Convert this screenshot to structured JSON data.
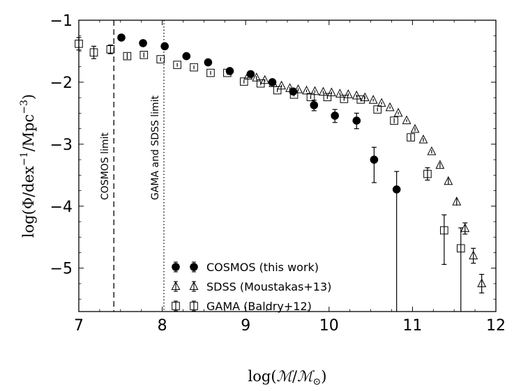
{
  "chart_data": {
    "type": "scatter",
    "xlabel_parts": {
      "prefix": "log(",
      "m1": "ℳ",
      "slash": "/",
      "m2": "ℳ",
      "sub": "⊙",
      "suffix": ")"
    },
    "ylabel_parts": {
      "prefix": "log(Φ/dex",
      "sup1": "−1",
      "mid": "/Mpc",
      "sup2": "−3",
      "suffix": ")"
    },
    "xlim": [
      7,
      12
    ],
    "ylim": [
      -5.7,
      -1.0
    ],
    "xticks": [
      7,
      8,
      9,
      10,
      11,
      12
    ],
    "yticks": [
      -1,
      -2,
      -3,
      -4,
      -5
    ],
    "xtick_labels": [
      "7",
      "8",
      "9",
      "10",
      "11",
      "12"
    ],
    "ytick_labels": [
      "−1",
      "−2",
      "−3",
      "−4",
      "−5"
    ],
    "vlines": [
      {
        "x": 7.42,
        "style": "dashed",
        "label": "COSMOS limit"
      },
      {
        "x": 8.02,
        "style": "dotted",
        "label": "GAMA and SDSS limit"
      }
    ],
    "legend_position": "lower-center",
    "series": [
      {
        "name": "COSMOS (this work)",
        "marker": "filled-circle",
        "x": [
          7.51,
          7.77,
          8.03,
          8.29,
          8.55,
          8.81,
          9.06,
          9.32,
          9.57,
          9.82,
          10.07,
          10.33,
          10.54,
          10.81
        ],
        "y": [
          -1.28,
          -1.37,
          -1.42,
          -1.58,
          -1.68,
          -1.82,
          -1.87,
          -2.0,
          -2.15,
          -2.37,
          -2.54,
          -2.62,
          -3.25,
          -3.73
        ],
        "err_low": [
          0.03,
          0.03,
          0.03,
          0.03,
          0.03,
          0.04,
          0.05,
          0.05,
          0.06,
          0.09,
          0.11,
          0.13,
          0.37,
          2.1
        ],
        "err_high": [
          0.03,
          0.03,
          0.03,
          0.03,
          0.03,
          0.04,
          0.05,
          0.05,
          0.06,
          0.08,
          0.1,
          0.12,
          0.2,
          0.29
        ]
      },
      {
        "name": "SDSS (Moustakas+13)",
        "marker": "open-triangle",
        "x": [
          9.03,
          9.13,
          9.23,
          9.33,
          9.43,
          9.53,
          9.63,
          9.73,
          9.83,
          9.93,
          10.03,
          10.13,
          10.23,
          10.33,
          10.43,
          10.53,
          10.63,
          10.73,
          10.83,
          10.93,
          11.03,
          11.13,
          11.23,
          11.33,
          11.43,
          11.53,
          11.63,
          11.73,
          11.83
        ],
        "y": [
          -1.9,
          -1.93,
          -1.97,
          -2.02,
          -2.06,
          -2.1,
          -2.12,
          -2.14,
          -2.15,
          -2.16,
          -2.17,
          -2.19,
          -2.2,
          -2.22,
          -2.25,
          -2.29,
          -2.34,
          -2.41,
          -2.5,
          -2.62,
          -2.76,
          -2.93,
          -3.12,
          -3.34,
          -3.6,
          -3.93,
          -4.36,
          -4.8,
          -5.25
        ],
        "err_low": [
          0.03,
          0.03,
          0.02,
          0.02,
          0.02,
          0.02,
          0.02,
          0.02,
          0.02,
          0.02,
          0.02,
          0.02,
          0.02,
          0.02,
          0.02,
          0.02,
          0.02,
          0.02,
          0.02,
          0.02,
          0.03,
          0.03,
          0.03,
          0.04,
          0.05,
          0.06,
          0.09,
          0.12,
          0.15
        ],
        "err_high": [
          0.03,
          0.03,
          0.02,
          0.02,
          0.02,
          0.02,
          0.02,
          0.02,
          0.02,
          0.02,
          0.02,
          0.02,
          0.02,
          0.02,
          0.02,
          0.02,
          0.02,
          0.02,
          0.02,
          0.02,
          0.03,
          0.03,
          0.03,
          0.04,
          0.05,
          0.06,
          0.09,
          0.12,
          0.15
        ]
      },
      {
        "name": "GAMA (Baldry+12)",
        "marker": "open-square",
        "x": [
          7.0,
          7.18,
          7.38,
          7.58,
          7.78,
          7.98,
          8.18,
          8.38,
          8.58,
          8.78,
          8.98,
          9.18,
          9.38,
          9.58,
          9.78,
          9.98,
          10.18,
          10.38,
          10.58,
          10.78,
          10.98,
          11.18,
          11.38,
          11.58
        ],
        "y": [
          -1.38,
          -1.52,
          -1.47,
          -1.58,
          -1.56,
          -1.63,
          -1.72,
          -1.76,
          -1.85,
          -1.85,
          -1.99,
          -2.02,
          -2.13,
          -2.2,
          -2.24,
          -2.24,
          -2.27,
          -2.28,
          -2.44,
          -2.62,
          -2.89,
          -3.48,
          -4.39,
          -4.68
        ],
        "err_low": [
          0.1,
          0.1,
          0.07,
          0.05,
          0.04,
          0.03,
          0.03,
          0.03,
          0.03,
          0.03,
          0.03,
          0.03,
          0.03,
          0.03,
          0.03,
          0.03,
          0.03,
          0.03,
          0.03,
          0.04,
          0.05,
          0.1,
          0.55,
          1.5
        ],
        "err_high": [
          0.1,
          0.1,
          0.07,
          0.05,
          0.04,
          0.03,
          0.03,
          0.03,
          0.03,
          0.03,
          0.03,
          0.03,
          0.03,
          0.03,
          0.03,
          0.03,
          0.03,
          0.03,
          0.03,
          0.04,
          0.05,
          0.1,
          0.25,
          0.33
        ]
      }
    ]
  }
}
